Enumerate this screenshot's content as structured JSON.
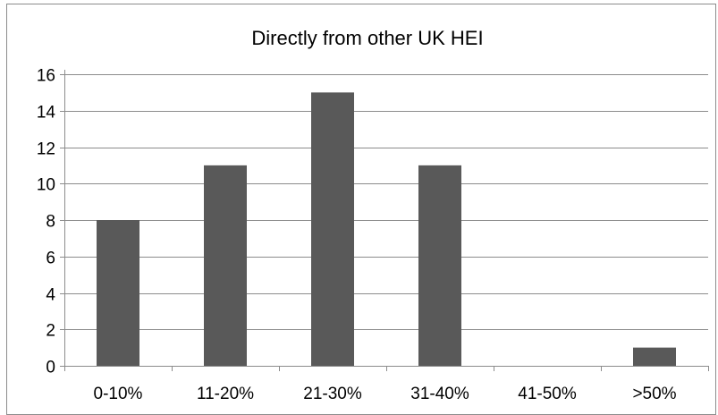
{
  "chart_data": {
    "type": "bar",
    "title": "Directly from other UK HEI",
    "categories": [
      "0-10%",
      "11-20%",
      "21-30%",
      "31-40%",
      "41-50%",
      ">50%"
    ],
    "values": [
      8,
      11,
      15,
      11,
      0,
      1
    ],
    "ylim": [
      0,
      16
    ],
    "yticks": [
      "0",
      "2",
      "4",
      "6",
      "8",
      "10",
      "12",
      "14",
      "16"
    ],
    "xlabel": "",
    "ylabel": "",
    "grid": true,
    "legend": "none",
    "bar_color": "#595959"
  }
}
